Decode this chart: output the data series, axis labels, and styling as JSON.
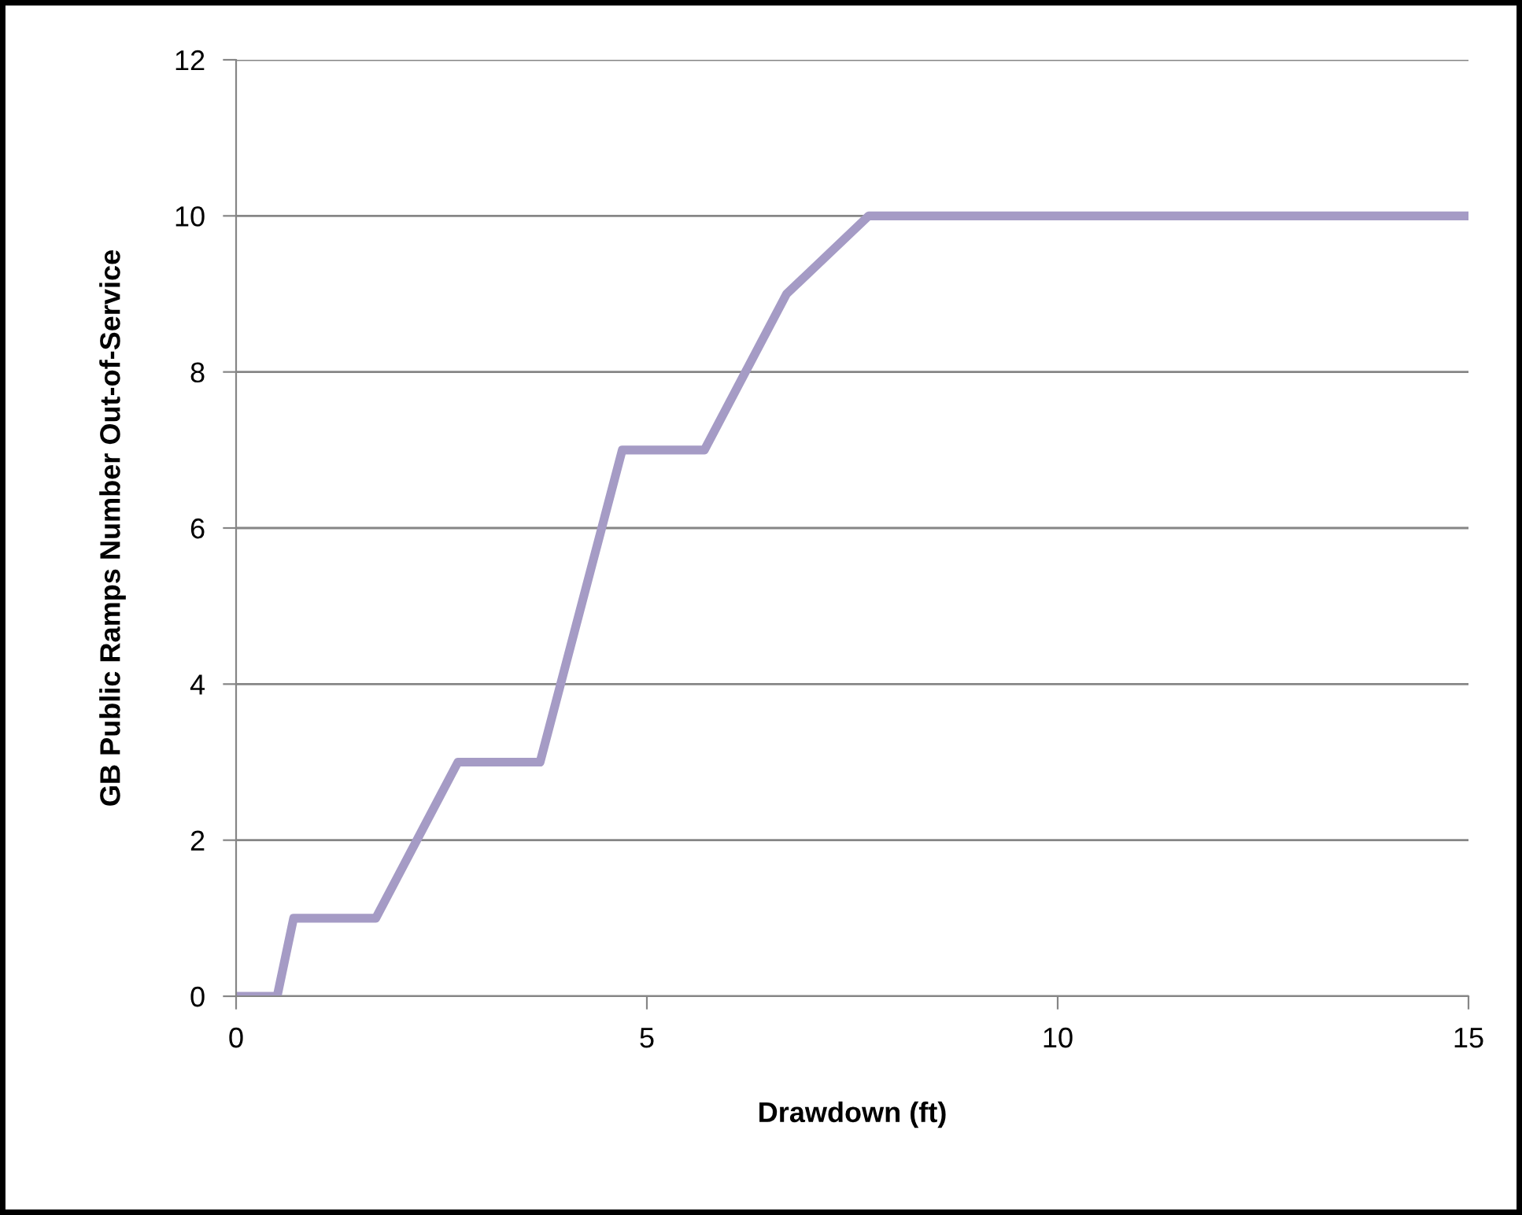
{
  "chart_data": {
    "type": "line",
    "xlabel": "Drawdown (ft)",
    "ylabel": "GB Public Ramps Number Out-of-Service",
    "series": [
      {
        "color": "#a59bc5",
        "x": [
          0,
          0.5,
          0.7,
          1.7,
          2.7,
          3.7,
          4.7,
          5.7,
          6.7,
          7.7,
          15
        ],
        "values": [
          0,
          0,
          1,
          1,
          3,
          3,
          7,
          7,
          9,
          10,
          10
        ]
      }
    ],
    "xlim": [
      0,
      15
    ],
    "xticks": [
      0,
      5,
      10,
      15
    ],
    "ylim": [
      0,
      12
    ],
    "yticks": [
      0,
      2,
      4,
      6,
      8,
      10,
      12
    ],
    "grid": "y",
    "marker": "none",
    "line_style": "solid",
    "legend": false
  }
}
